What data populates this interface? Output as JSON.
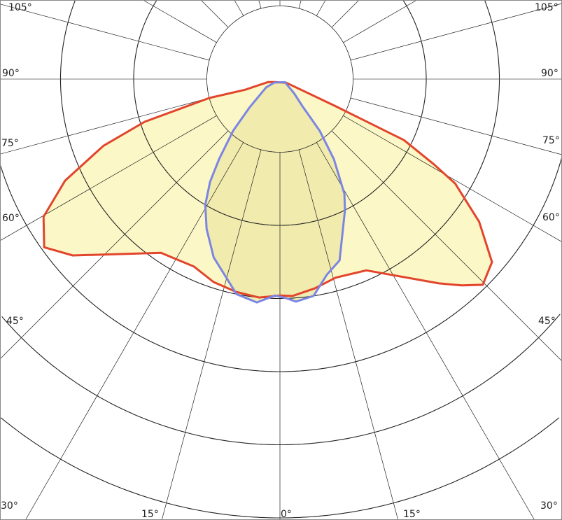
{
  "chart_data": {
    "type": "polar",
    "title": "",
    "angle_unit": "degrees",
    "zero_direction": "down",
    "ring_count": 6,
    "ring_labels_shown": false,
    "grid": true,
    "angle_step": 15,
    "angle_labels": {
      "left_105": "105°",
      "right_105": "105°",
      "left_90": "90°",
      "right_90": "90°",
      "left_75": "75°",
      "right_75": "75°",
      "left_60": "60°",
      "right_60": "60°",
      "left_45": "45°",
      "right_45": "45°",
      "left_30": "30°",
      "right_30": "30°",
      "left_15": "15°",
      "right_15": "15°",
      "zero": "0°"
    },
    "series": [
      {
        "stroke": "#e2452b",
        "fill": "#fcf7c6",
        "points": [
          [
            -60,
            0.08
          ],
          [
            -76,
            0.17
          ],
          [
            -73,
            0.5
          ],
          [
            -75,
            1.0
          ],
          [
            -72.5,
            1.94
          ],
          [
            -69.3,
            2.58
          ],
          [
            -64.7,
            3.25
          ],
          [
            -59.8,
            3.74
          ],
          [
            -54.5,
            3.96
          ],
          [
            -49.6,
            3.72
          ],
          [
            -34.4,
            2.88
          ],
          [
            -24.7,
            2.82
          ],
          [
            -18.1,
            2.92
          ],
          [
            -11.7,
            2.97
          ],
          [
            -5.5,
            3.0
          ],
          [
            0,
            2.96
          ],
          [
            3.3,
            2.97
          ],
          [
            9.5,
            2.9
          ],
          [
            15.7,
            2.82
          ],
          [
            24.3,
            2.87
          ],
          [
            37.9,
            3.54
          ],
          [
            41.4,
            3.76
          ],
          [
            44.6,
            3.95
          ],
          [
            49.2,
            3.83
          ],
          [
            54.4,
            3.35
          ],
          [
            59.2,
            2.79
          ],
          [
            61,
            2.41
          ],
          [
            63.8,
            1.89
          ],
          [
            64,
            0.85
          ],
          [
            60,
            0.1
          ]
        ]
      },
      {
        "stroke": "#7b86e3",
        "fill": "#efe9a8",
        "points": [
          [
            -58,
            0.09
          ],
          [
            -59,
            0.22
          ],
          [
            -47.1,
            0.56
          ],
          [
            -42.2,
            0.95
          ],
          [
            -37.3,
            1.37
          ],
          [
            -34.2,
            1.7
          ],
          [
            -30.7,
            2.0
          ],
          [
            -26.1,
            2.28
          ],
          [
            -20.4,
            2.6
          ],
          [
            -11.4,
            3.0
          ],
          [
            -5.9,
            3.07
          ],
          [
            -1.3,
            2.96
          ],
          [
            1.8,
            3.0
          ],
          [
            4.1,
            3.05
          ],
          [
            8.8,
            3.0
          ],
          [
            13.5,
            2.75
          ],
          [
            18.2,
            2.61
          ],
          [
            26.4,
            2.0
          ],
          [
            29.3,
            1.8
          ],
          [
            34,
            1.32
          ],
          [
            37.6,
            0.89
          ],
          [
            39.5,
            0.5
          ],
          [
            45,
            0.27
          ],
          [
            58,
            0.08
          ]
        ]
      }
    ]
  }
}
